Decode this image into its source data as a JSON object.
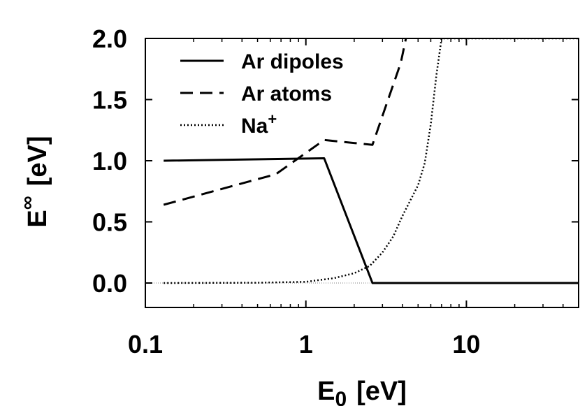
{
  "chart_data": {
    "type": "line",
    "x_scale": "log",
    "xlim": [
      0.1,
      50
    ],
    "ylim": [
      -0.2,
      2.0
    ],
    "xlabel": {
      "main": "E",
      "sub": "0",
      "unit": "[eV]"
    },
    "ylabel": {
      "main": "E",
      "sup": "∞",
      "unit": "[eV]"
    },
    "x_ticks": [
      {
        "value": 0.1,
        "label": "0.1"
      },
      {
        "value": 1,
        "label": "1"
      },
      {
        "value": 10,
        "label": "10"
      }
    ],
    "y_ticks": [
      {
        "value": 0.0,
        "label": "0.0"
      },
      {
        "value": 0.5,
        "label": "0.5"
      },
      {
        "value": 1.0,
        "label": "1.0"
      },
      {
        "value": 1.5,
        "label": "1.5"
      },
      {
        "value": 2.0,
        "label": "2.0"
      }
    ],
    "grid": false,
    "legend_position": "top-left",
    "series": [
      {
        "name": "Ar dipoles",
        "style": "solid",
        "color": "#000000",
        "points": [
          [
            0.13,
            1.0
          ],
          [
            1.3,
            1.02
          ],
          [
            2.6,
            0.0
          ],
          [
            50,
            0.0
          ]
        ]
      },
      {
        "name": "Ar atoms",
        "style": "dashed",
        "color": "#000000",
        "points": [
          [
            0.13,
            0.64
          ],
          [
            0.65,
            0.89
          ],
          [
            1.3,
            1.17
          ],
          [
            2.6,
            1.13
          ],
          [
            3.9,
            1.8
          ],
          [
            4.2,
            2.0
          ]
        ]
      },
      {
        "name": "Na",
        "name_sup": "+",
        "style": "dotted",
        "color": "#000000",
        "points": [
          [
            0.13,
            0.0
          ],
          [
            0.5,
            0.002
          ],
          [
            1.0,
            0.01
          ],
          [
            1.5,
            0.04
          ],
          [
            2.0,
            0.08
          ],
          [
            2.5,
            0.14
          ],
          [
            3.0,
            0.25
          ],
          [
            3.5,
            0.38
          ],
          [
            4.0,
            0.55
          ],
          [
            5.0,
            0.8
          ],
          [
            5.5,
            0.98
          ],
          [
            6.0,
            1.3
          ],
          [
            6.5,
            1.7
          ],
          [
            7.0,
            2.0
          ],
          [
            50,
            2.0
          ]
        ]
      }
    ]
  }
}
